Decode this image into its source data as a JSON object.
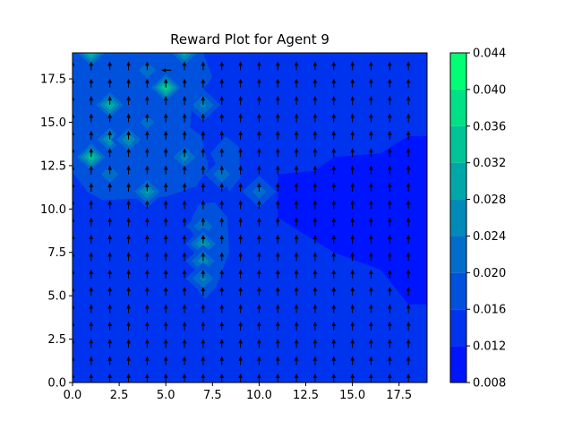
{
  "chart_data": {
    "type": "heatmap",
    "title": "Reward Plot for Agent 9",
    "xlabel": "",
    "ylabel": "",
    "xlim": [
      0,
      19
    ],
    "ylim": [
      0,
      19
    ],
    "x_ticks": [
      "0.0",
      "2.5",
      "5.0",
      "7.5",
      "10.0",
      "12.5",
      "15.0",
      "17.5"
    ],
    "y_ticks": [
      "0.0",
      "2.5",
      "5.0",
      "7.5",
      "10.0",
      "12.5",
      "15.0",
      "17.5"
    ],
    "colorbar": {
      "min": 0.008,
      "max": 0.044,
      "levels": [
        0.008,
        0.012,
        0.016,
        0.02,
        0.024,
        0.028,
        0.032,
        0.036,
        0.04,
        0.044
      ],
      "tick_labels": [
        "0.008",
        "0.012",
        "0.016",
        "0.020",
        "0.024",
        "0.028",
        "0.032",
        "0.036",
        "0.040",
        "0.044"
      ],
      "colors": [
        "#0015ff",
        "#0033ed",
        "#0051dc",
        "#006dcb",
        "#008ab9",
        "#00a7a8",
        "#00c496",
        "#00e185",
        "#00ff74"
      ]
    },
    "background_value": 0.0155,
    "low_region": {
      "value": 0.0115,
      "polygon": [
        [
          11,
          9.5
        ],
        [
          11,
          12
        ],
        [
          13,
          12.2
        ],
        [
          14,
          13
        ],
        [
          16.5,
          13.2
        ],
        [
          18,
          14.2
        ],
        [
          19,
          14.2
        ],
        [
          19,
          4.5
        ],
        [
          18,
          4.5
        ],
        [
          16.5,
          6.5
        ],
        [
          14,
          7.5
        ],
        [
          12.5,
          8.5
        ]
      ]
    },
    "low_strip": {
      "value": 0.0135,
      "x_range": [
        0,
        6.4
      ],
      "y_range": [
        0,
        4.9
      ]
    },
    "mid_regions": [
      {
        "value": 0.0185,
        "polygon": [
          [
            0,
            19
          ],
          [
            7,
            19
          ],
          [
            7.5,
            17.6
          ],
          [
            6.4,
            16
          ],
          [
            6.3,
            14.7
          ],
          [
            6.9,
            14.2
          ],
          [
            7.3,
            12.3
          ],
          [
            6.6,
            11.3
          ],
          [
            5,
            10.7
          ],
          [
            3.2,
            10.6
          ],
          [
            1.6,
            10.5
          ],
          [
            0.8,
            11
          ],
          [
            0,
            12.1
          ]
        ]
      },
      {
        "value": 0.0185,
        "polygon": [
          [
            6.4,
            9.5
          ],
          [
            6.6,
            5.5
          ],
          [
            7.1,
            4.8
          ],
          [
            7.7,
            5.5
          ],
          [
            8.4,
            7.5
          ],
          [
            8.3,
            9.5
          ],
          [
            7.6,
            10.4
          ],
          [
            6.8,
            10.3
          ]
        ]
      },
      {
        "value": 0.0185,
        "polygon": [
          [
            7.4,
            13.2
          ],
          [
            8.4,
            11
          ],
          [
            9,
            11.8
          ],
          [
            8.9,
            13.6
          ],
          [
            8.2,
            14.2
          ]
        ]
      }
    ],
    "hotspots": [
      {
        "x": 1,
        "y": 19,
        "value": 0.034
      },
      {
        "x": 6,
        "y": 19,
        "value": 0.031
      },
      {
        "x": 2,
        "y": 16,
        "value": 0.033
      },
      {
        "x": 5,
        "y": 17,
        "value": 0.038
      },
      {
        "x": 4,
        "y": 18,
        "value": 0.024
      },
      {
        "x": 4,
        "y": 15,
        "value": 0.023
      },
      {
        "x": 7,
        "y": 16,
        "value": 0.026
      },
      {
        "x": 2,
        "y": 14,
        "value": 0.03
      },
      {
        "x": 3,
        "y": 14,
        "value": 0.029
      },
      {
        "x": 1,
        "y": 13,
        "value": 0.036
      },
      {
        "x": 6,
        "y": 13,
        "value": 0.027
      },
      {
        "x": 2,
        "y": 12,
        "value": 0.024
      },
      {
        "x": 4,
        "y": 11,
        "value": 0.03
      },
      {
        "x": 8,
        "y": 12,
        "value": 0.024
      },
      {
        "x": 10,
        "y": 11,
        "value": 0.023
      },
      {
        "x": 7,
        "y": 9,
        "value": 0.025
      },
      {
        "x": 7,
        "y": 8,
        "value": 0.03
      },
      {
        "x": 7,
        "y": 7,
        "value": 0.028
      },
      {
        "x": 7,
        "y": 6,
        "value": 0.026
      }
    ],
    "quiver": {
      "x_range": [
        0,
        18
      ],
      "y_range": [
        0,
        18
      ],
      "step": 1,
      "default_direction": "up",
      "exceptions": [
        {
          "x": 5,
          "y": 18,
          "direction": "left"
        }
      ]
    }
  }
}
